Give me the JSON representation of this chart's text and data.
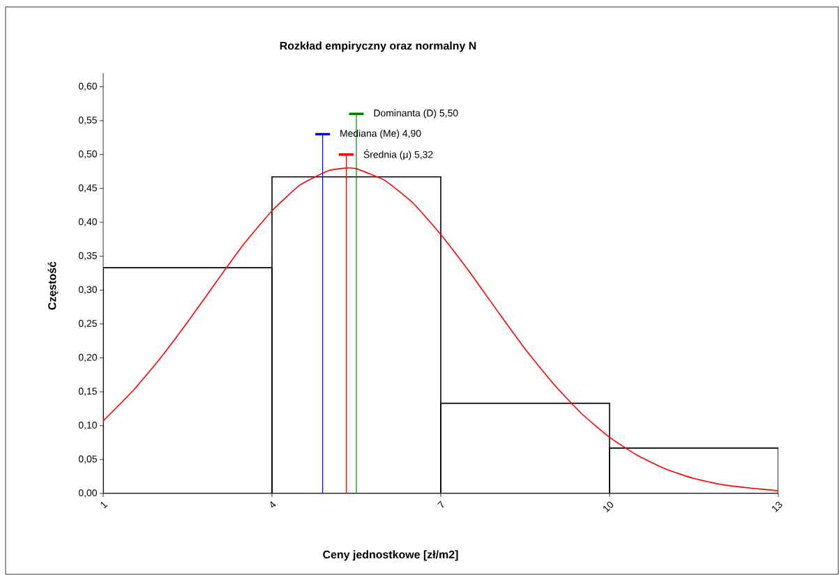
{
  "chart_data": {
    "type": "histogram",
    "title": "Rozkład empiryczny oraz normalny N",
    "xlabel": "Ceny jednostkowe  [zł/m2]",
    "ylabel": "Częstość",
    "bins": [
      1,
      4,
      7,
      10,
      13
    ],
    "values": [
      0.333,
      0.467,
      0.133,
      0.067
    ],
    "color": "#000000",
    "series": [
      {
        "type": "line",
        "color": "#ff0000",
        "x": [
          1,
          1.5,
          2,
          2.5,
          3,
          3.5,
          4,
          4.5,
          5,
          5.32,
          5.5,
          6,
          6.5,
          7,
          7.5,
          8,
          8.5,
          9,
          9.5,
          10,
          10.5,
          11,
          11.5,
          12,
          12.5,
          13
        ],
        "values": [
          0.107,
          0.149,
          0.198,
          0.253,
          0.311,
          0.368,
          0.417,
          0.455,
          0.476,
          0.48,
          0.479,
          0.462,
          0.429,
          0.382,
          0.328,
          0.27,
          0.213,
          0.162,
          0.118,
          0.083,
          0.056,
          0.036,
          0.022,
          0.013,
          0.008,
          0.004
        ]
      }
    ],
    "ref_lines": [
      {
        "axis": "x",
        "value": 5.5,
        "label": "Dominanta (D) 5,50",
        "color": "#008000"
      },
      {
        "axis": "x",
        "value": 4.9,
        "label": "Mediana (Me) 4,90",
        "color": "#0000ff"
      },
      {
        "axis": "x",
        "value": 5.32,
        "label": "Średnia (μ) 5,32",
        "color": "#ff0000"
      }
    ],
    "xlim": [
      1,
      13
    ],
    "ylim": [
      0,
      0.62
    ],
    "xticks": [
      1,
      4,
      7,
      10,
      13
    ],
    "yticks": [
      {
        "value": 0,
        "label": "0,00"
      },
      {
        "value": 0.05,
        "label": "0,05"
      },
      {
        "value": 0.1,
        "label": "0,10"
      },
      {
        "value": 0.15,
        "label": "0,15"
      },
      {
        "value": 0.2,
        "label": "0,20"
      },
      {
        "value": 0.25,
        "label": "0,25"
      },
      {
        "value": 0.3,
        "label": "0,30"
      },
      {
        "value": 0.35,
        "label": "0,35"
      },
      {
        "value": 0.4,
        "label": "0,40"
      },
      {
        "value": 0.45,
        "label": "0,45"
      },
      {
        "value": 0.5,
        "label": "0,50"
      },
      {
        "value": 0.55,
        "label": "0,55"
      },
      {
        "value": 0.6,
        "label": "0,60"
      }
    ],
    "grid": false,
    "marker": "none",
    "line_style": "solid"
  }
}
